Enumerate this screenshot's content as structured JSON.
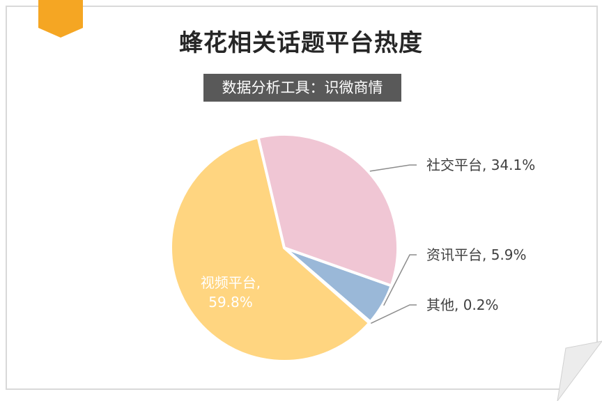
{
  "title": "蜂花相关话题平台热度",
  "subtitle": "数据分析工具：识微商情",
  "colors": {
    "accent": "#f5a623",
    "frame": "#d9d9d9",
    "subtitle_bg": "#595959"
  },
  "chart_data": {
    "type": "pie",
    "title": "蜂花相关话题平台热度",
    "categories": [
      "视频平台",
      "社交平台",
      "资讯平台",
      "其他"
    ],
    "values": [
      59.8,
      34.1,
      5.9,
      0.2
    ],
    "colors": [
      "#ffd580",
      "#f0c6d4",
      "#9ab8d8",
      "#ffd580"
    ],
    "data_labels": [
      "视频平台, 59.8%",
      "社交平台, 34.1%",
      "资讯平台, 5.9%",
      "其他, 0.2%"
    ],
    "label_placement": [
      "inside",
      "outside",
      "outside",
      "outside"
    ],
    "legend": "none"
  }
}
